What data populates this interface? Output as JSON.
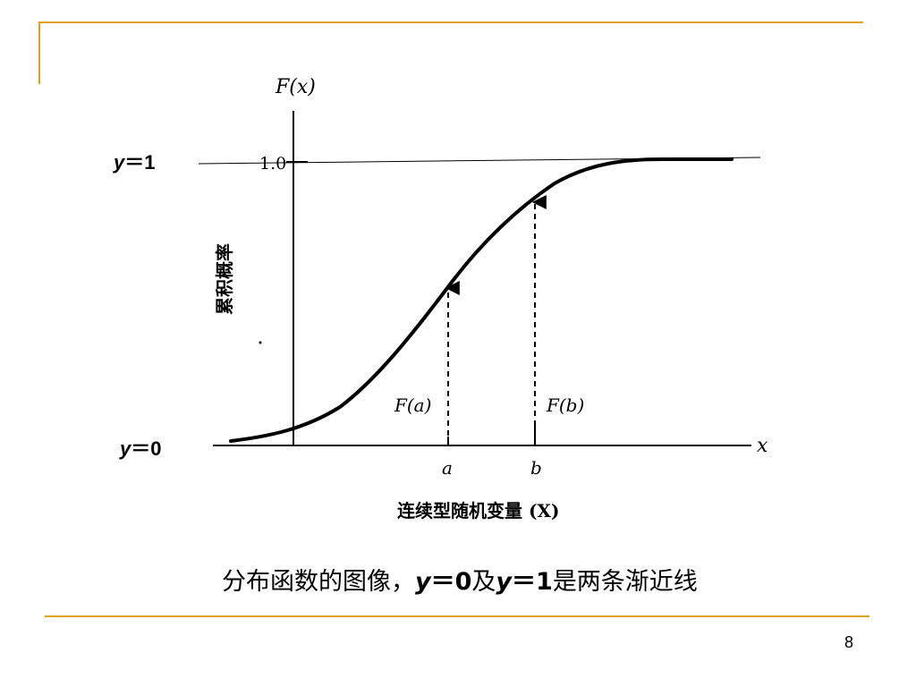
{
  "diagram": {
    "y_axis_label": "F(x)",
    "y_axis_title": "累积概率",
    "x_axis_label": "x",
    "x_axis_title": "连续型随机变量 (X)",
    "tick_one": "1.0",
    "point_a": "a",
    "point_b": "b",
    "label_fa": "F(a)",
    "label_fb": "F(b)"
  },
  "asymptotes": {
    "upper_var": "y",
    "upper_eq": "＝1",
    "lower_var": "y",
    "lower_eq": "＝0"
  },
  "caption": {
    "part1": "分布函数的图像，",
    "var1": "y",
    "eq1": "＝0",
    "part2": "及",
    "var2": "y",
    "eq2": "＝1",
    "part3": "是两条渐近线"
  },
  "page_number": "8",
  "colors": {
    "accent": "#e0a020",
    "ink": "#000000"
  }
}
